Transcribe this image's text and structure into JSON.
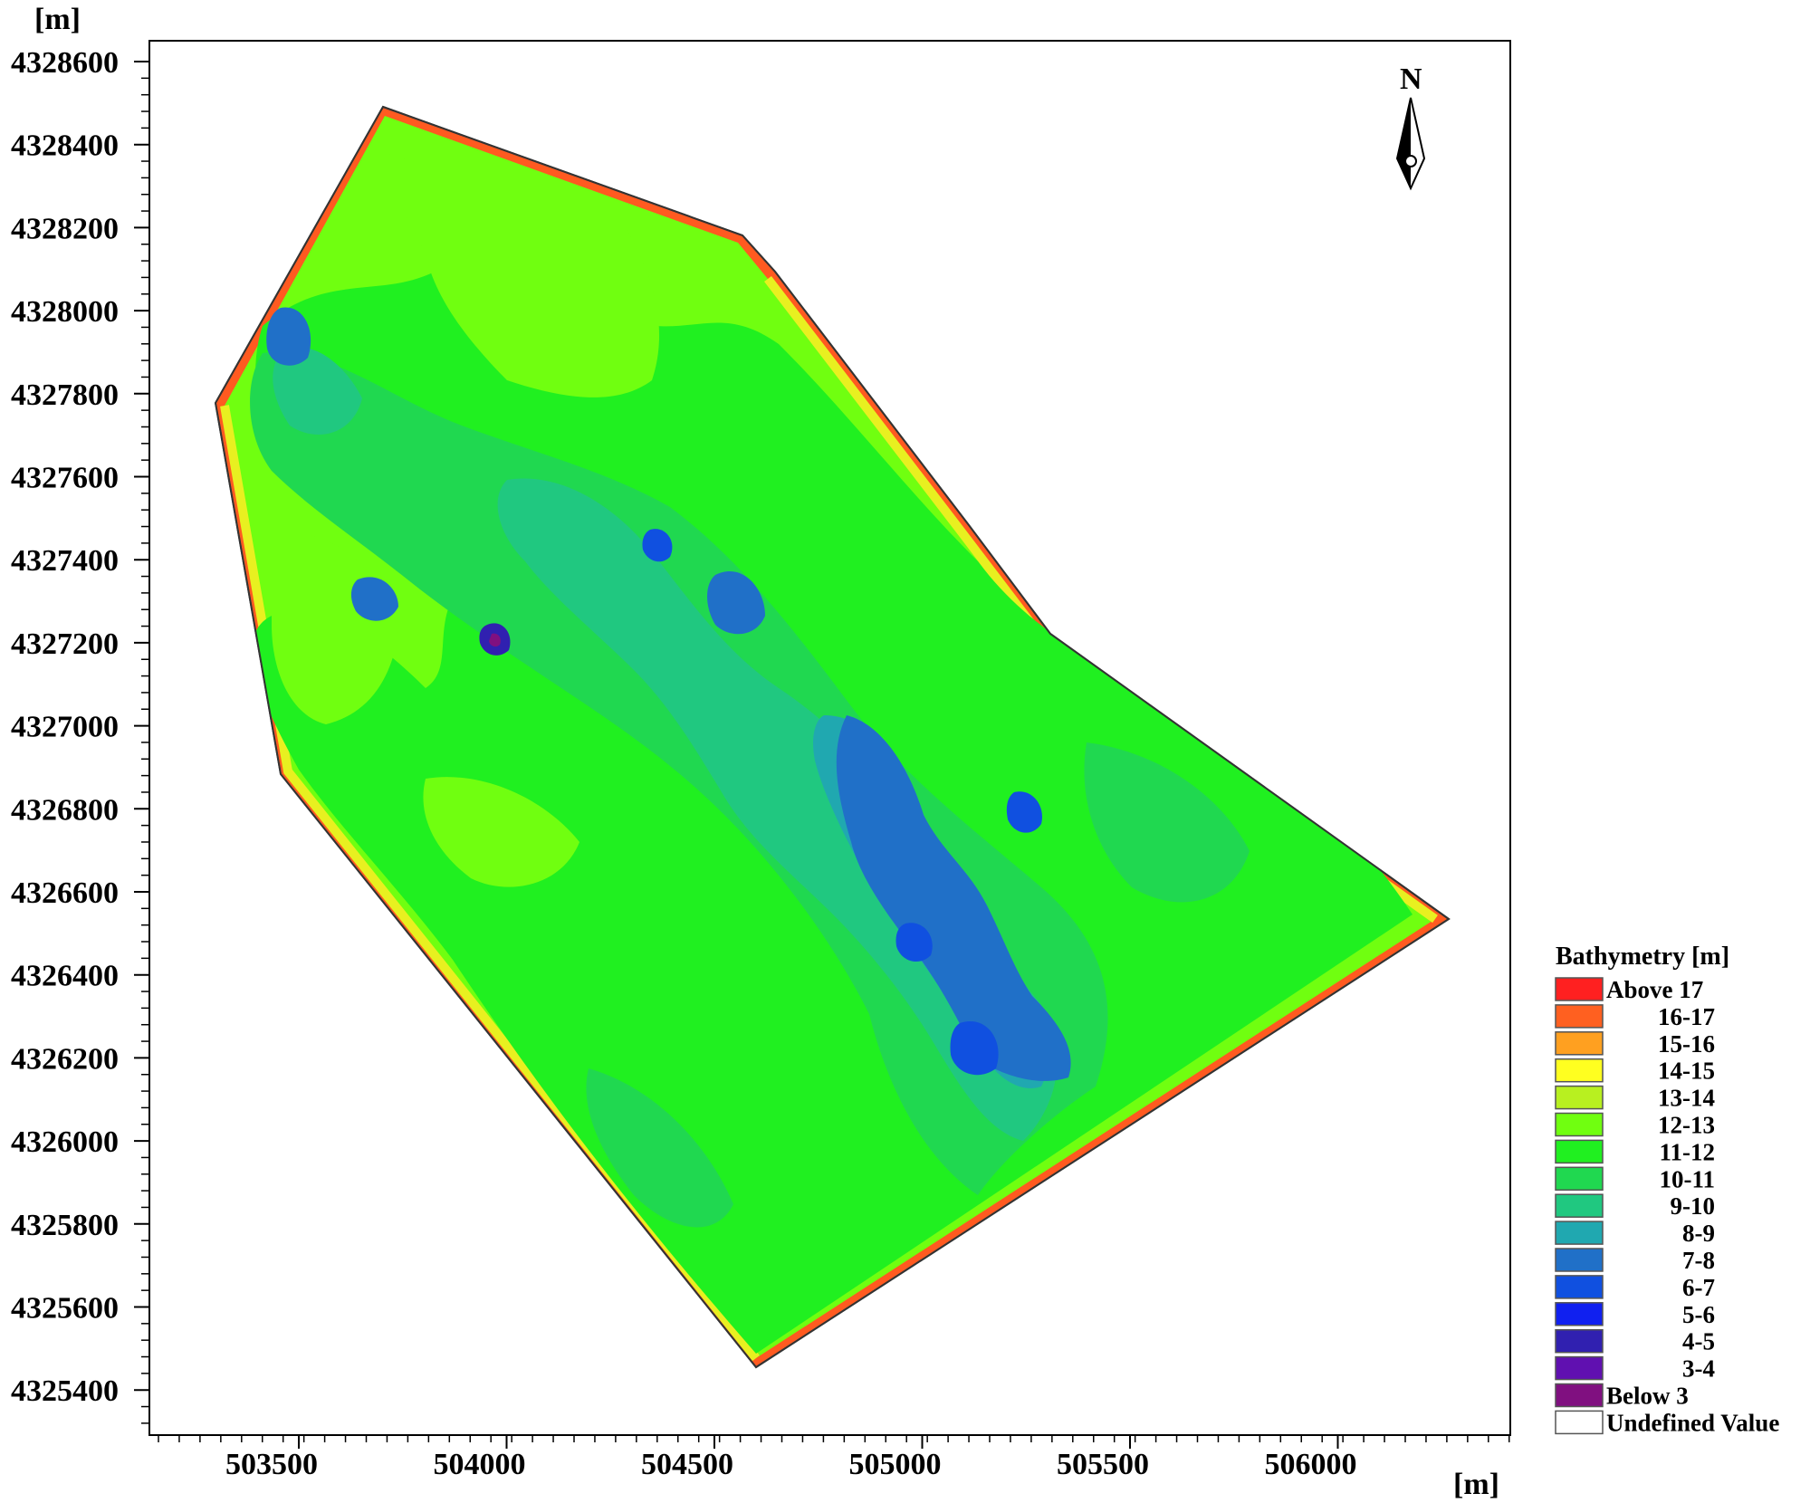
{
  "map": {
    "y_unit": "[m]",
    "x_unit": "[m]",
    "north_label": "N",
    "x_ticks": [
      "503500",
      "504000",
      "504500",
      "505000",
      "505500",
      "506000"
    ],
    "y_ticks": [
      "4328600",
      "4328400",
      "4328200",
      "4328000",
      "4327800",
      "4327600",
      "4327400",
      "4327200",
      "4327000",
      "4326800",
      "4326600",
      "4326400",
      "4326200",
      "4326000",
      "4325800",
      "4325600",
      "4325400"
    ],
    "x_range": [
      503000,
      506280
    ],
    "y_range": [
      4325300,
      4328650
    ]
  },
  "legend": {
    "title": "Bathymetry [m]",
    "items": [
      {
        "label": "Above 17",
        "color": "#ff2020"
      },
      {
        "label": "16-17",
        "color": "#ff6020"
      },
      {
        "label": "15-16",
        "color": "#ffa020"
      },
      {
        "label": "14-15",
        "color": "#ffff20"
      },
      {
        "label": "13-14",
        "color": "#b8f020"
      },
      {
        "label": "12-13",
        "color": "#70ff10"
      },
      {
        "label": "11-12",
        "color": "#20f020"
      },
      {
        "label": "10-11",
        "color": "#20d850"
      },
      {
        "label": "9-10",
        "color": "#20c880"
      },
      {
        "label": "8-9",
        "color": "#20a8b0"
      },
      {
        "label": "7-8",
        "color": "#2070c8"
      },
      {
        "label": "6-7",
        "color": "#1050e0"
      },
      {
        "label": "5-6",
        "color": "#1020f0"
      },
      {
        "label": "4-5",
        "color": "#3020b0"
      },
      {
        "label": "3-4",
        "color": "#6010b0"
      },
      {
        "label": "Below 3",
        "color": "#801080"
      },
      {
        "label": "Undefined Value",
        "color": "#ffffff"
      }
    ]
  }
}
